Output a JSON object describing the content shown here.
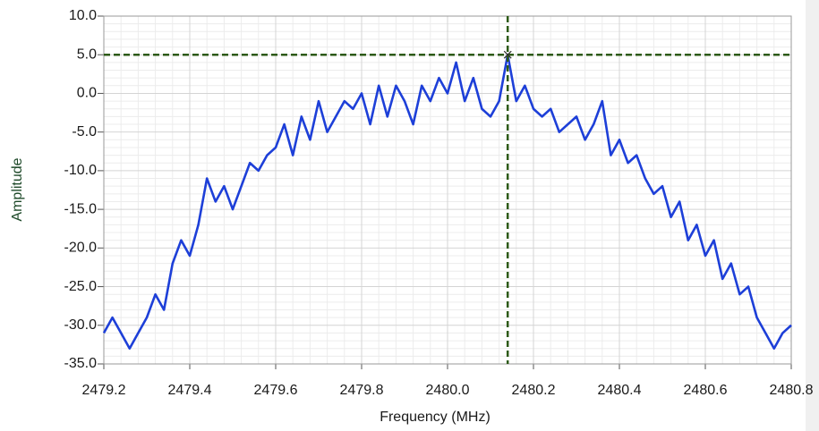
{
  "chart_data": {
    "type": "line",
    "xlabel": "Frequency (MHz)",
    "ylabel": "Amplitude",
    "xlim": [
      2479.2,
      2480.8
    ],
    "ylim": [
      -35,
      10
    ],
    "xticks": [
      2479.2,
      2479.4,
      2479.6,
      2479.8,
      {
        "value": 2480,
        "label": "2480.0"
      },
      2480.2,
      2480.4,
      2480.6,
      2480.8
    ],
    "yticks": [
      {
        "value": 10,
        "label": "10.0"
      },
      {
        "value": 5,
        "label": "5.0"
      },
      {
        "value": 0,
        "label": "0.0"
      },
      {
        "value": -5,
        "label": "-5.0"
      },
      {
        "value": -10,
        "label": "-10.0"
      },
      {
        "value": -15,
        "label": "-15.0"
      },
      {
        "value": -20,
        "label": "-20.0"
      },
      {
        "value": -25,
        "label": "-25.0"
      },
      {
        "value": -30,
        "label": "-30.0"
      },
      {
        "value": -35,
        "label": "-35.0"
      }
    ],
    "grid": true,
    "minor_divisions": 5,
    "cursor": {
      "x": 2480.14,
      "y": 5,
      "color": "#2d5a17"
    },
    "x": [
      2479.2,
      2479.22,
      2479.24,
      2479.26,
      2479.28,
      2479.3,
      2479.32,
      2479.34,
      2479.36,
      2479.38,
      2479.4,
      2479.42,
      2479.44,
      2479.46,
      2479.48,
      2479.5,
      2479.52,
      2479.54,
      2479.56,
      2479.58,
      2479.6,
      2479.62,
      2479.64,
      2479.66,
      2479.68,
      2479.7,
      2479.72,
      2479.74,
      2479.76,
      2479.78,
      2479.8,
      2479.82,
      2479.84,
      2479.86,
      2479.88,
      2479.9,
      2479.92,
      2479.94,
      2479.96,
      2479.98,
      2480.0,
      2480.02,
      2480.04,
      2480.06,
      2480.08,
      2480.1,
      2480.12,
      2480.14,
      2480.16,
      2480.18,
      2480.2,
      2480.22,
      2480.24,
      2480.26,
      2480.28,
      2480.3,
      2480.32,
      2480.34,
      2480.36,
      2480.38,
      2480.4,
      2480.42,
      2480.44,
      2480.46,
      2480.48,
      2480.5,
      2480.52,
      2480.54,
      2480.56,
      2480.58,
      2480.6,
      2480.62,
      2480.64,
      2480.66,
      2480.68,
      2480.7,
      2480.72,
      2480.74,
      2480.76,
      2480.78,
      2480.8
    ],
    "series": [
      {
        "color": "#1d3fd8",
        "values": [
          -31,
          -29,
          -31,
          -33,
          -31,
          -29,
          -26,
          -28,
          -22,
          -19,
          -21,
          -17,
          -11,
          -14,
          -12,
          -15,
          -12,
          -9,
          -10,
          -8,
          -7,
          -4,
          -8,
          -3,
          -6,
          -1,
          -5,
          -3,
          -1,
          -2,
          0,
          -4,
          1,
          -3,
          1,
          -1,
          -4,
          1,
          -1,
          2,
          0,
          4,
          -1,
          2,
          -2,
          -3,
          -1,
          5,
          -1,
          1,
          -2,
          -3,
          -2,
          -5,
          -4,
          -3,
          -6,
          -4,
          -1,
          -8,
          -6,
          -9,
          -8,
          -11,
          -13,
          -12,
          -16,
          -14,
          -19,
          -17,
          -21,
          -19,
          -24,
          -22,
          -26,
          -25,
          -29,
          -31,
          -33,
          -31,
          -30
        ]
      }
    ]
  }
}
